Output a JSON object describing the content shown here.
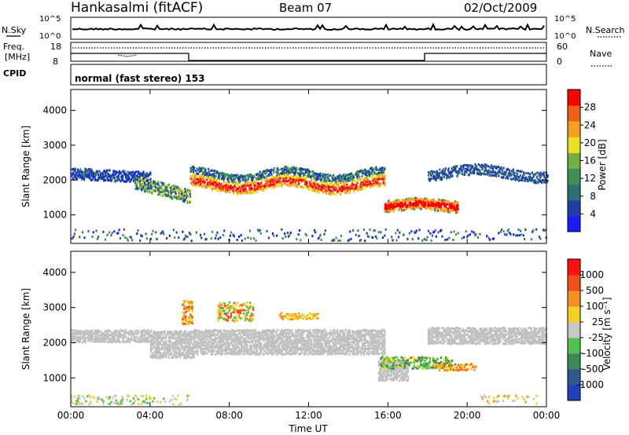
{
  "header": {
    "station": "Hankasalmi (fitACF)",
    "beam": "Beam 07",
    "date": "02/Oct/2009"
  },
  "status_panels": {
    "nsky_label": "N.Sky",
    "nsky_ticks": [
      "10^5",
      "10^0"
    ],
    "nsearch_label": "N.Search",
    "nsearch_ticks": [
      "10^5",
      "10^0"
    ],
    "freq_label_1": "Freq.",
    "freq_label_2": "[MHz]",
    "freq_ticks": [
      "18",
      "8"
    ],
    "nave_label": "Nave",
    "nave_ticks": [
      "60",
      "0"
    ],
    "cpid_label": "CPID",
    "cpid_text": "normal (fast stereo) 153"
  },
  "colors": {
    "power_scale": [
      "#1a1aff",
      "#1e3fa8",
      "#2f6f72",
      "#3f8f55",
      "#6fb040",
      "#e8e020",
      "#f5a020",
      "#f06018",
      "#ff0000"
    ],
    "velocity_scale": [
      "#2040c0",
      "#305890",
      "#3a8a58",
      "#50c050",
      "#c8c8c8",
      "#f5d020",
      "#f59020",
      "#f05018",
      "#ff1010"
    ],
    "ground_scatter": "#c0c0c0"
  },
  "chart_data": [
    {
      "type": "heatmap",
      "name": "power",
      "xlabel": "",
      "ylabel": "Slant Range [km]",
      "x_ticks": [
        "00:00",
        "04:00",
        "08:00",
        "12:00",
        "16:00",
        "20:00",
        "00:00"
      ],
      "xlim": [
        0,
        24
      ],
      "y_ticks": [
        "1000",
        "2000",
        "3000",
        "4000"
      ],
      "ylim": [
        180,
        4600
      ],
      "colorbar_label": "Power [dB]",
      "colorbar_ticks": [
        "4",
        "8",
        "12",
        "16",
        "20",
        "24",
        "28"
      ],
      "colorbar_range": [
        0,
        30
      ]
    },
    {
      "type": "heatmap",
      "name": "velocity",
      "xlabel": "Time UT",
      "ylabel": "Slant Range [km]",
      "x_ticks": [
        "00:00",
        "04:00",
        "08:00",
        "12:00",
        "16:00",
        "20:00",
        "00:00"
      ],
      "xlim": [
        0,
        24
      ],
      "y_ticks": [
        "1000",
        "2000",
        "3000",
        "4000"
      ],
      "ylim": [
        180,
        4600
      ],
      "colorbar_label": "Velocity [m s⁻¹]",
      "colorbar_ticks": [
        "1000",
        "500",
        "100",
        "25",
        "-25",
        "-100",
        "-500",
        "-1000"
      ],
      "scatter_bands": [
        {
          "t0": 0.0,
          "t1": 4.0,
          "r0": 2000,
          "r1": 2350,
          "kind": "ground"
        },
        {
          "t0": 4.0,
          "t1": 6.2,
          "r0": 1550,
          "r1": 2300,
          "kind": "ground"
        },
        {
          "t0": 6.2,
          "t1": 15.8,
          "r0": 1650,
          "r1": 2350,
          "kind": "ground"
        },
        {
          "t0": 15.5,
          "t1": 17.0,
          "r0": 900,
          "r1": 1500,
          "kind": "ground"
        },
        {
          "t0": 18.0,
          "t1": 24.0,
          "r0": 1950,
          "r1": 2400,
          "kind": "ground"
        }
      ]
    }
  ]
}
